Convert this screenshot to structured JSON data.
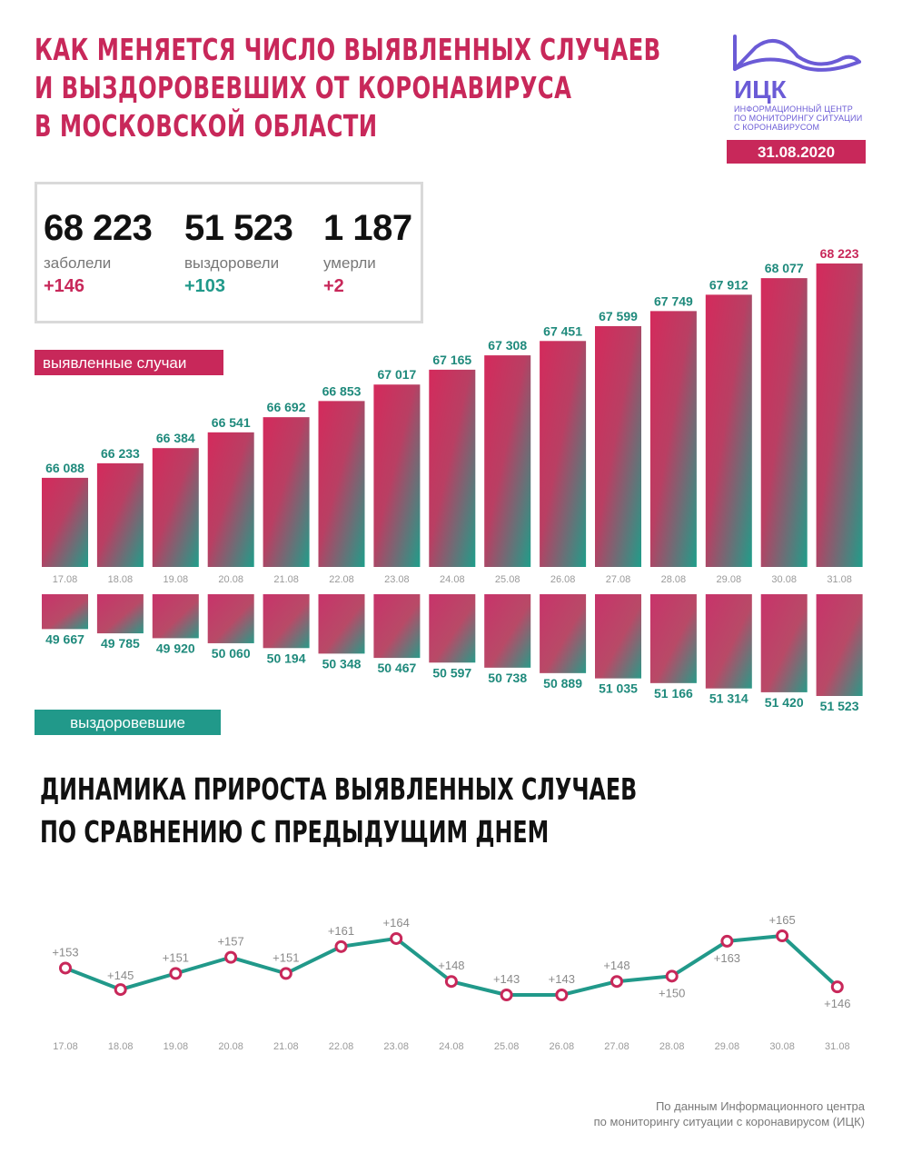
{
  "title": {
    "line1": "КАК МЕНЯЕТСЯ ЧИСЛО ВЫЯВЛЕННЫХ СЛУЧАЕВ",
    "line2": "И ВЫЗДОРОВЕВШИХ ОТ КОРОНАВИРУСА",
    "line3": "В МОСКОВСКОЙ ОБЛАСТИ"
  },
  "logo": {
    "abbr": "ИЦК",
    "line1": "ИНФОРМАЦИОННЫЙ ЦЕНТР",
    "line2": "ПО МОНИТОРИНГУ СИТУАЦИИ",
    "line3": "С КОРОНАВИРУСОМ"
  },
  "date": "31.08.2020",
  "summary": {
    "infected": {
      "value": "68 223",
      "label": "заболели",
      "delta": "+146"
    },
    "recovered": {
      "value": "51 523",
      "label": "выздоровели",
      "delta": "+103"
    },
    "died": {
      "value": "1 187",
      "label": "умерли",
      "delta": "+2"
    }
  },
  "tags": {
    "cases": "выявленные случаи",
    "recovered": "выздоровевшие"
  },
  "subtitle": {
    "line1": "ДИНАМИКА ПРИРОСТА ВЫЯВЛЕННЫХ СЛУЧАЕВ",
    "line2": "ПО СРАВНЕНИЮ С ПРЕДЫДУЩИМ ДНЕМ"
  },
  "source": {
    "line1": "По данным Информационного центра",
    "line2": "по мониторингу ситуации с коронавирусом (ИЦК)"
  },
  "colors": {
    "accent": "#c8285a",
    "teal": "#21998a",
    "label_teal": "#1f8a7c"
  },
  "chart_data": [
    {
      "type": "bar",
      "title": "",
      "categories": [
        "17.08",
        "18.08",
        "19.08",
        "20.08",
        "21.08",
        "22.08",
        "23.08",
        "24.08",
        "25.08",
        "26.08",
        "27.08",
        "28.08",
        "29.08",
        "30.08",
        "31.08"
      ],
      "series": [
        {
          "name": "выявленные случаи",
          "values": [
            66088,
            66233,
            66384,
            66541,
            66692,
            66853,
            67017,
            67165,
            67308,
            67451,
            67599,
            67749,
            67912,
            68077,
            68223
          ]
        },
        {
          "name": "выздоровевшие",
          "values": [
            49667,
            49785,
            49920,
            50060,
            50194,
            50348,
            50467,
            50597,
            50738,
            50889,
            51035,
            51166,
            51314,
            51420,
            51523
          ]
        }
      ],
      "value_labels_cases": [
        "66 088",
        "66 233",
        "66 384",
        "66 541",
        "66 692",
        "66 853",
        "67 017",
        "67 165",
        "67 308",
        "67 451",
        "67 599",
        "67 749",
        "67 912",
        "68 077",
        "68 223"
      ],
      "value_labels_recovered": [
        "49 667",
        "49 785",
        "49 920",
        "50 060",
        "50 194",
        "50 348",
        "50 467",
        "50 597",
        "50 738",
        "50 889",
        "51 035",
        "51 166",
        "51 314",
        "51 420",
        "51 523"
      ],
      "grid": false
    },
    {
      "type": "line",
      "title": "",
      "x": [
        "17.08",
        "18.08",
        "19.08",
        "20.08",
        "21.08",
        "22.08",
        "23.08",
        "24.08",
        "25.08",
        "26.08",
        "27.08",
        "28.08",
        "29.08",
        "30.08",
        "31.08"
      ],
      "values": [
        153,
        145,
        151,
        157,
        151,
        161,
        164,
        148,
        143,
        143,
        148,
        150,
        163,
        165,
        146
      ],
      "labels": [
        "+153",
        "+145",
        "+151",
        "+157",
        "+151",
        "+161",
        "+164",
        "+148",
        "+143",
        "+143",
        "+148",
        "+150",
        "+163",
        "+165",
        "+146"
      ],
      "grid": false
    }
  ]
}
